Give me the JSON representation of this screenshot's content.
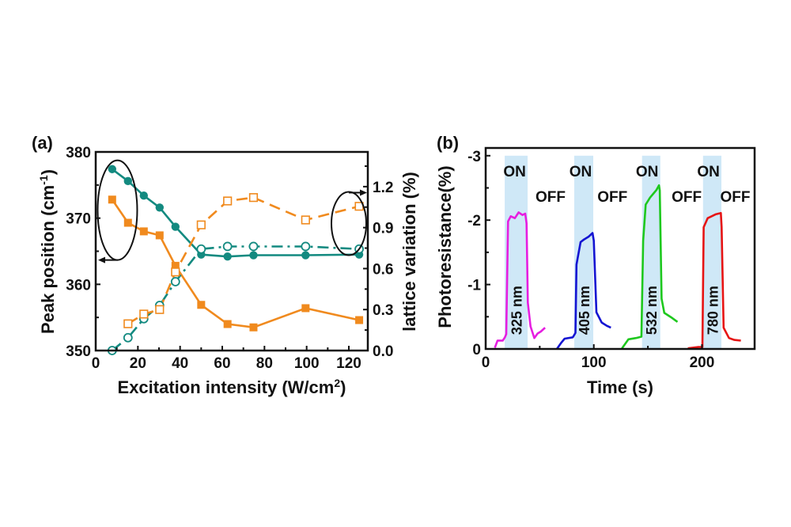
{
  "chart_data": [
    {
      "panel_label": "(a)",
      "type": "line",
      "xlabel": "Excitation intensity (W/cm",
      "xlabel_sup": "2",
      "xlabel_close": ")",
      "ylabel": "Peak position (cm",
      "ylabel_sup": "-1",
      "ylabel_close": ")",
      "y2label": "lattice variation (%)",
      "xlim": [
        0,
        129
      ],
      "ylim": [
        350,
        380
      ],
      "y2lim": [
        0,
        1.454
      ],
      "xticks": [
        0,
        20,
        40,
        60,
        80,
        100,
        120
      ],
      "yticks": [
        350,
        360,
        370,
        380
      ],
      "y2ticks": [
        "0.0",
        "0.3",
        "0.6",
        "0.9",
        "1.2"
      ],
      "y2tick_values": [
        0,
        0.3,
        0.6,
        0.9,
        1.2
      ],
      "grid": false,
      "series": [
        {
          "name": "peak-teal",
          "axis": "left",
          "color": "#138a80",
          "marker": "filled-circle",
          "line": "solid",
          "x": [
            7.8,
            15.3,
            22.8,
            30.3,
            37.8,
            50,
            62.5,
            74.8,
            99.5,
            124.9
          ],
          "y": [
            377.4,
            375.6,
            373.4,
            371.6,
            368.7,
            364.5,
            364.2,
            364.4,
            364.4,
            364.5
          ]
        },
        {
          "name": "peak-orange",
          "axis": "left",
          "color": "#f08a1e",
          "marker": "filled-square",
          "line": "solid",
          "x": [
            7.8,
            15.3,
            22.8,
            30.3,
            37.8,
            50,
            62.5,
            74.8,
            99.5,
            124.9
          ],
          "y": [
            372.8,
            369.3,
            368.0,
            367.4,
            362.8,
            356.9,
            354.0,
            353.5,
            356.4,
            354.6
          ]
        },
        {
          "name": "lattice-teal",
          "axis": "right",
          "color": "#138a80",
          "marker": "open-circle",
          "line": "dash-dot",
          "x": [
            7.8,
            15.3,
            22.8,
            30.3,
            37.8,
            50,
            62.5,
            74.8,
            99.5,
            124.9
          ],
          "y": [
            0.0,
            0.094,
            0.233,
            0.33,
            0.504,
            0.743,
            0.762,
            0.762,
            0.762,
            0.743
          ]
        },
        {
          "name": "lattice-orange",
          "axis": "right",
          "color": "#f08a1e",
          "marker": "open-square",
          "line": "dashed",
          "x": [
            15.3,
            22.8,
            30.3,
            37.8,
            50,
            62.5,
            74.8,
            99.5,
            124.9
          ],
          "y": [
            0.196,
            0.267,
            0.3,
            0.575,
            0.92,
            1.095,
            1.12,
            0.956,
            1.056
          ]
        }
      ],
      "annotations": [
        {
          "type": "ellipse-arrow",
          "target_axis": "left",
          "cx_data": 10.3,
          "cy_data": 371.2,
          "arrow": "left"
        },
        {
          "type": "ellipse-arrow",
          "target_axis": "right",
          "cx_data": 120,
          "cy_data": 0.93,
          "arrow": "right"
        }
      ]
    },
    {
      "panel_label": "(b)",
      "type": "line",
      "xlabel": "Time (s)",
      "ylabel": "Photoresistance(%)",
      "xlim": [
        0,
        248.7
      ],
      "ylim": [
        0,
        -3.12
      ],
      "xticks": [
        0,
        100,
        200
      ],
      "xminor": [
        50,
        150
      ],
      "yticks": [
        "0",
        "-1",
        "-2",
        "-3"
      ],
      "ytick_values": [
        0,
        -1,
        -2,
        -3
      ],
      "grid": false,
      "on_label": "ON",
      "off_label": "OFF",
      "light_on_intervals": [
        [
          17.6,
          38.8
        ],
        [
          81.9,
          99.5
        ],
        [
          144.6,
          161.5
        ],
        [
          201,
          218
        ]
      ],
      "on_label_t": [
        26.8,
        87.8,
        149.3,
        206
      ],
      "off_label_t": [
        60,
        117.2,
        185.9,
        230.8
      ],
      "shade_color": "#cfe8f7",
      "series": [
        {
          "name": "325 nm",
          "color": "#e61ee0",
          "t": [
            8.5,
            11,
            15.8,
            17.8,
            19,
            20.7,
            23.2,
            27,
            30.5,
            34,
            36.6,
            37.8,
            39,
            41.5,
            45,
            48,
            51,
            54.9
          ],
          "v": [
            -0.02,
            -0.13,
            -0.13,
            -0.18,
            -0.23,
            -1.98,
            -2.06,
            -2.03,
            -2.12,
            -2.08,
            -2.1,
            -1.95,
            -0.72,
            -0.35,
            -0.17,
            -0.24,
            -0.27,
            -0.33
          ]
        },
        {
          "name": "405 nm",
          "color": "#1414d2",
          "t": [
            65.8,
            70,
            73,
            80.5,
            82,
            83,
            84,
            87.8,
            91,
            95,
            98.8,
            100,
            102.4,
            107.3,
            112,
            115.8
          ],
          "v": [
            0,
            -0.1,
            -0.16,
            -0.18,
            -0.22,
            -0.25,
            -1.31,
            -1.66,
            -1.7,
            -1.74,
            -1.8,
            -1.68,
            -0.57,
            -0.41,
            -0.36,
            -0.33
          ]
        },
        {
          "name": "532 nm",
          "color": "#1ec81e",
          "t": [
            126,
            132,
            139,
            144,
            145.6,
            148,
            152,
            155.5,
            158,
            160.3,
            161,
            162.7,
            165.2,
            172.5,
            177.4
          ],
          "v": [
            -0.01,
            -0.15,
            -0.17,
            -0.19,
            -1.68,
            -2.24,
            -2.35,
            -2.42,
            -2.47,
            -2.54,
            -2.46,
            -0.78,
            -0.56,
            -0.48,
            -0.42
          ]
        },
        {
          "name": "780 nm",
          "color": "#e61414",
          "t": [
            187,
            196.7,
            200.4,
            201.6,
            205.3,
            209,
            212.6,
            217.5,
            218.2,
            220,
            225,
            230,
            236
          ],
          "v": [
            -0.01,
            -0.03,
            -0.03,
            -1.89,
            -2.03,
            -2.06,
            -2.09,
            -2.11,
            -1.89,
            -0.33,
            -0.17,
            -0.14,
            -0.13
          ]
        }
      ]
    }
  ]
}
